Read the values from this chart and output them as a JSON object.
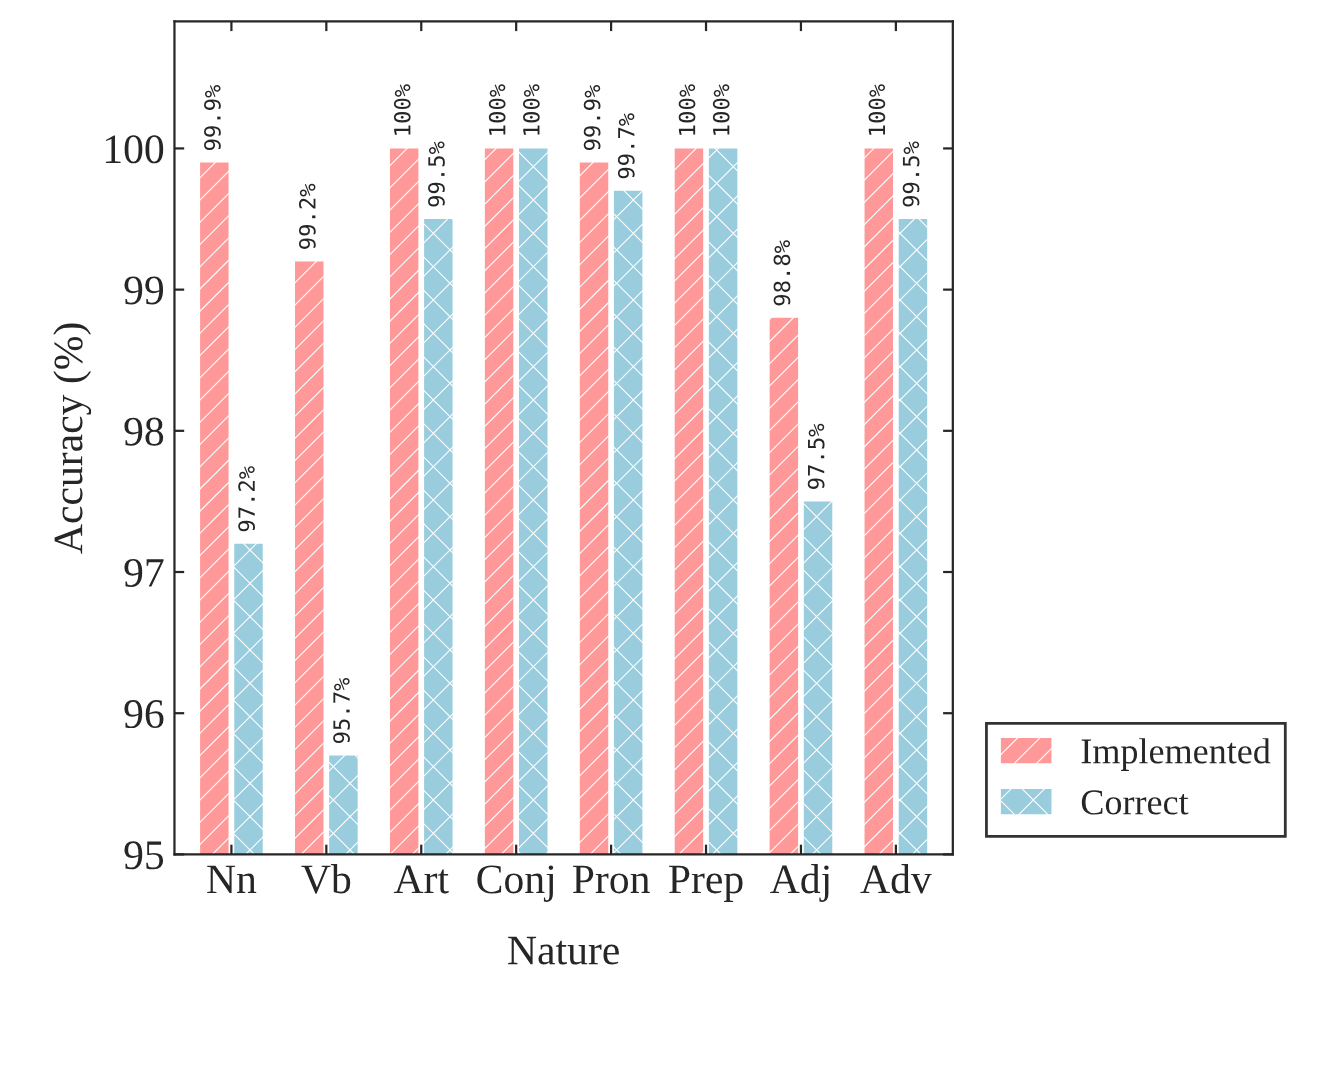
{
  "chart_data": {
    "type": "bar",
    "xlabel": "Nature",
    "ylabel": "Accuracy (%)",
    "categories": [
      "Nn",
      "Vb",
      "Art",
      "Conj",
      "Pron",
      "Prep",
      "Adj",
      "Adv"
    ],
    "series": [
      {
        "name": "Implemented",
        "color": "#ff9999",
        "values": [
          99.9,
          99.2,
          100,
          100,
          99.9,
          100,
          98.8,
          100
        ],
        "value_labels": [
          "99.9%",
          "99.2%",
          "100%",
          "100%",
          "99.9%",
          "100%",
          "98.8%",
          "100%"
        ]
      },
      {
        "name": "Correct",
        "color": "#99ccdd",
        "values": [
          97.2,
          95.7,
          99.5,
          100,
          99.7,
          100,
          97.5,
          99.5
        ],
        "value_labels": [
          "97.2%",
          "95.7%",
          "99.5%",
          "100%",
          "99.7%",
          "100%",
          "97.5%",
          "99.5%"
        ]
      }
    ],
    "ylim": [
      95,
      100.9
    ],
    "yticks": [
      95,
      96,
      97,
      98,
      99,
      100
    ],
    "grid": false,
    "legend": "bottom right"
  }
}
